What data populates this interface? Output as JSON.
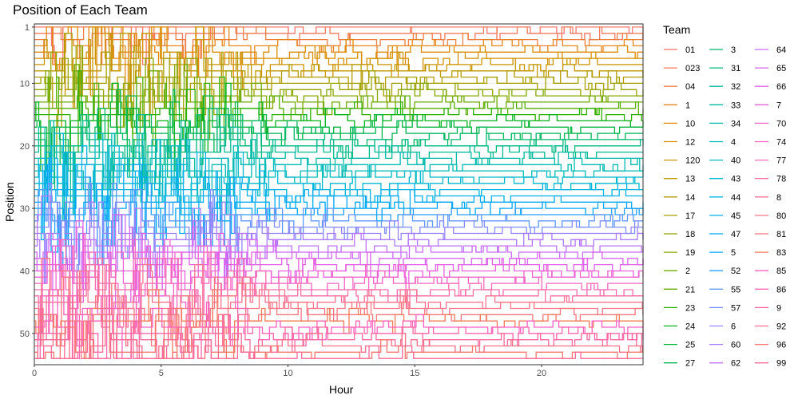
{
  "chart_data": {
    "type": "line",
    "title": "Position of Each Team",
    "xlabel": "Hour",
    "ylabel": "Position",
    "xlim": [
      0,
      24
    ],
    "ylim": [
      55,
      0.5
    ],
    "y_reversed": true,
    "x_ticks": [
      0,
      5,
      10,
      15,
      20
    ],
    "y_ticks": [
      1,
      10,
      20,
      30,
      40,
      50
    ],
    "grid": true,
    "legend_title": "Team",
    "legend_position": "right",
    "series": [
      {
        "name": "01",
        "color": "#F8766D"
      },
      {
        "name": "023",
        "color": "#F47A5C"
      },
      {
        "name": "04",
        "color": "#EE7F46"
      },
      {
        "name": "1",
        "color": "#E7851D"
      },
      {
        "name": "10",
        "color": "#DE8A00"
      },
      {
        "name": "12",
        "color": "#D58F00"
      },
      {
        "name": "120",
        "color": "#CB9400"
      },
      {
        "name": "13",
        "color": "#C09800"
      },
      {
        "name": "14",
        "color": "#B39C00"
      },
      {
        "name": "17",
        "color": "#A5A000"
      },
      {
        "name": "18",
        "color": "#96A400"
      },
      {
        "name": "19",
        "color": "#84A800"
      },
      {
        "name": "2",
        "color": "#6FAB00"
      },
      {
        "name": "21",
        "color": "#55AE00"
      },
      {
        "name": "23",
        "color": "#2CB100"
      },
      {
        "name": "24",
        "color": "#00B31B"
      },
      {
        "name": "25",
        "color": "#00B43D"
      },
      {
        "name": "27",
        "color": "#00B655"
      },
      {
        "name": "3",
        "color": "#00B86A"
      },
      {
        "name": "31",
        "color": "#00B97E"
      },
      {
        "name": "32",
        "color": "#00BA91"
      },
      {
        "name": "33",
        "color": "#00BAA3"
      },
      {
        "name": "34",
        "color": "#00BAB4"
      },
      {
        "name": "4",
        "color": "#00BBB6"
      },
      {
        "name": "40",
        "color": "#00B9C4"
      },
      {
        "name": "43",
        "color": "#00B7D3"
      },
      {
        "name": "44",
        "color": "#00B4E0"
      },
      {
        "name": "45",
        "color": "#00B0EB"
      },
      {
        "name": "47",
        "color": "#00ABF5"
      },
      {
        "name": "5",
        "color": "#00A5FC"
      },
      {
        "name": "52",
        "color": "#279FFF"
      },
      {
        "name": "55",
        "color": "#5E97FF"
      },
      {
        "name": "57",
        "color": "#7F8EFF"
      },
      {
        "name": "6",
        "color": "#9785FF"
      },
      {
        "name": "60",
        "color": "#AB7BFF"
      },
      {
        "name": "62",
        "color": "#BC73FF"
      },
      {
        "name": "64",
        "color": "#CA6BF8"
      },
      {
        "name": "65",
        "color": "#D665F0"
      },
      {
        "name": "66",
        "color": "#E062E7"
      },
      {
        "name": "7",
        "color": "#E961DC"
      },
      {
        "name": "70",
        "color": "#F062CF"
      },
      {
        "name": "74",
        "color": "#F565C1"
      },
      {
        "name": "77",
        "color": "#F96AB2"
      },
      {
        "name": "78",
        "color": "#FB70A1"
      },
      {
        "name": "8",
        "color": "#FC7291"
      },
      {
        "name": "80",
        "color": "#FA7586"
      },
      {
        "name": "81",
        "color": "#F8767D"
      },
      {
        "name": "83",
        "color": "#F37B59"
      },
      {
        "name": "85",
        "color": "#FF61C3"
      },
      {
        "name": "86",
        "color": "#FF64B0"
      },
      {
        "name": "9",
        "color": "#FF699C"
      },
      {
        "name": "92",
        "color": "#FC6D87"
      },
      {
        "name": "96",
        "color": "#F8766D"
      },
      {
        "name": "99",
        "color": "#FF6A98"
      }
    ]
  }
}
